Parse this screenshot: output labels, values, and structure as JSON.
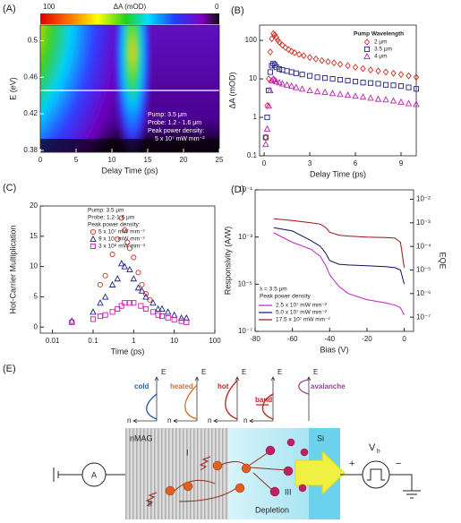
{
  "panel_labels": [
    "(A)",
    "(B)",
    "(C)",
    "(D)",
    "(E)"
  ],
  "chart_data": [
    {
      "type": "heatmap",
      "xlabel": "Delay Time (ps)",
      "ylabel": "E (eV)",
      "xlim": [
        0,
        25
      ],
      "ylim": [
        0.378,
        0.517
      ],
      "xticks": [
        0,
        5,
        10,
        15,
        20,
        25
      ],
      "yticks": [
        0.38,
        0.42,
        0.46,
        0.5
      ],
      "colorbar": {
        "label": "ΔA (mOD)",
        "max": 100,
        "min": 0
      },
      "annotations": [
        "Pump: 3.5 μm",
        "Probe: 1.2 - 1.6 μm",
        "Peak power density:",
        "5 x 10⁷ mW mm⁻²"
      ]
    },
    {
      "type": "scatter",
      "xlabel": "Delay Time (ps)",
      "ylabel": "ΔA (mOD)",
      "xlim": [
        -0.3,
        10
      ],
      "ylim": [
        0.1,
        250
      ],
      "ylog": true,
      "xticks": [
        0,
        3,
        6,
        9
      ],
      "yticks": [
        0.1,
        1,
        10,
        100
      ],
      "legend_title": "Pump Wavelength",
      "series": [
        {
          "name": "2 μm",
          "color": "#d03020",
          "marker": "diamond",
          "x": [
            0.1,
            0.2,
            0.3,
            0.4,
            0.5,
            0.6,
            0.7,
            0.8,
            0.9,
            1.0,
            1.2,
            1.4,
            1.6,
            1.8,
            2.0,
            2.3,
            2.6,
            3.0,
            3.4,
            3.8,
            4.2,
            4.6,
            5.0,
            5.5,
            6.0,
            6.5,
            7.0,
            7.5,
            8.0,
            8.5,
            9.0,
            9.5,
            10
          ],
          "values": [
            0.3,
            2,
            10,
            50,
            110,
            150,
            140,
            120,
            100,
            90,
            75,
            65,
            58,
            52,
            48,
            43,
            40,
            36,
            33,
            30,
            28,
            26,
            24,
            22,
            20,
            18.5,
            17,
            16,
            15,
            14,
            13,
            12,
            11
          ]
        },
        {
          "name": "3.5 μm",
          "color": "#20208a",
          "marker": "square",
          "x": [
            0.1,
            0.2,
            0.3,
            0.4,
            0.5,
            0.6,
            0.7,
            0.8,
            1.0,
            1.2,
            1.5,
            1.8,
            2.1,
            2.5,
            3.0,
            3.5,
            4.0,
            4.5,
            5.0,
            5.5,
            6.0,
            6.5,
            7.0,
            7.5,
            8.0,
            8.5,
            9.0,
            9.5,
            10
          ],
          "values": [
            0.3,
            1,
            5,
            15,
            22,
            25,
            23,
            20,
            18,
            17,
            16,
            15,
            14,
            13,
            12,
            11,
            10.5,
            10,
            9.5,
            9,
            8.5,
            8,
            7.8,
            7.5,
            7,
            6.8,
            6.5,
            6,
            5.5
          ]
        },
        {
          "name": "4 μm",
          "color": "#c020b0",
          "marker": "triangle",
          "x": [
            0.1,
            0.2,
            0.3,
            0.4,
            0.5,
            0.6,
            0.7,
            0.8,
            1.0,
            1.2,
            1.5,
            1.8,
            2.1,
            2.5,
            3.0,
            3.5,
            4.0,
            4.5,
            5.0,
            5.5,
            6.0,
            6.5,
            7.0,
            7.5,
            8.0,
            8.5,
            9.0,
            9.5,
            10
          ],
          "values": [
            0.2,
            0.5,
            2,
            5,
            9,
            10,
            9.5,
            8.5,
            8,
            7.5,
            7,
            6.5,
            6,
            5.5,
            5,
            4.7,
            4.5,
            4.2,
            4,
            3.8,
            3.6,
            3.4,
            3.2,
            3,
            2.9,
            2.7,
            2.5,
            2.3,
            2.2
          ]
        }
      ]
    },
    {
      "type": "scatter",
      "xlabel": "Time (ps)",
      "ylabel": "Hot-Carrier Multiplication",
      "xlim": [
        0.005,
        100
      ],
      "xlog": true,
      "ylim": [
        -1,
        20
      ],
      "xticks": [
        0.01,
        0.1,
        1,
        10,
        100
      ],
      "yticks": [
        0,
        5,
        10,
        15,
        20
      ],
      "annotations": [
        "Pump:  3.5 μm",
        "Probe:  1.2-1.6 μm",
        "Peak power density:"
      ],
      "series": [
        {
          "name": "5 x 10⁷ mW mm⁻²",
          "color": "#d03020",
          "marker": "circle",
          "x": [
            0.15,
            0.2,
            0.3,
            0.4,
            0.5,
            0.6,
            0.7,
            0.8,
            1.0,
            1.3,
            1.6,
            2,
            2.5
          ],
          "values": [
            7,
            8.5,
            12,
            14.5,
            18,
            16,
            14,
            13,
            11.5,
            9,
            7,
            5.5,
            4.5
          ]
        },
        {
          "name": "9 x 10⁷ mW mm⁻²",
          "color": "#20208a",
          "marker": "triangle",
          "x": [
            0.03,
            0.1,
            0.15,
            0.2,
            0.3,
            0.4,
            0.5,
            0.6,
            0.8,
            1.0,
            1.3,
            1.6,
            2,
            3,
            4,
            5,
            7,
            10,
            15,
            20
          ],
          "values": [
            1,
            2.5,
            4,
            5,
            7,
            8,
            10.5,
            10,
            9.5,
            8,
            6.5,
            6,
            5,
            4,
            3,
            3,
            2.5,
            2,
            1.5,
            1.5
          ]
        },
        {
          "name": "3 x 10⁸ mW mm⁻²",
          "color": "#c020b0",
          "marker": "square",
          "x": [
            0.03,
            0.1,
            0.15,
            0.2,
            0.3,
            0.4,
            0.5,
            0.6,
            0.8,
            1,
            1.5,
            2,
            3,
            4,
            5,
            7,
            10,
            15,
            20
          ],
          "values": [
            0.8,
            1.3,
            1.8,
            2,
            2.5,
            3,
            3.5,
            4,
            4,
            4,
            3.5,
            3,
            2.5,
            2,
            1.8,
            1.5,
            1.2,
            1,
            0.8
          ]
        }
      ]
    },
    {
      "type": "line",
      "xlabel": "Bias (V)",
      "ylabel": "Responsivity (A/W)",
      "y2label": "EQE",
      "xlim": [
        -80,
        5
      ],
      "ylim": [
        1e-07,
        0.1
      ],
      "ylog": true,
      "y2lim": [
        2.5e-08,
        0.025
      ],
      "xticks": [
        -80,
        -60,
        -40,
        -20,
        0
      ],
      "yticks": [
        {
          "value": 0.1,
          "label": "10⁻¹"
        },
        {
          "value": 0.001,
          "label": "10⁻³"
        },
        {
          "value": 1e-05,
          "label": "10⁻⁵"
        },
        {
          "value": 1e-07,
          "label": "10⁻⁷"
        }
      ],
      "y2ticks": [
        {
          "value": 0.01,
          "label": "10⁻²"
        },
        {
          "value": 0.001,
          "label": "10⁻³"
        },
        {
          "value": 0.0001,
          "label": "10⁻⁴"
        },
        {
          "value": 1e-05,
          "label": "10⁻⁵"
        },
        {
          "value": 1e-06,
          "label": "10⁻⁶"
        },
        {
          "value": 1e-07,
          "label": "10⁻⁷"
        }
      ],
      "annotations": [
        "λ = 3.5 μm",
        "Peak power density"
      ],
      "series": [
        {
          "name": "2.5 x 10⁷ mW mm⁻²",
          "color": "#c020c0",
          "x": [
            -70,
            -60,
            -50,
            -45,
            -42,
            -40,
            -35,
            -30,
            -20,
            -10,
            -5,
            -2,
            0
          ],
          "values": [
            0.0015,
            0.0006,
            0.0003,
            0.00015,
            6e-05,
            2.5e-05,
            8e-06,
            4e-06,
            2.2e-06,
            1.6e-06,
            1.3e-06,
            1e-06,
            5e-07
          ]
        },
        {
          "name": "5.0 x 10⁷ mW mm⁻²",
          "color": "#101060",
          "x": [
            -70,
            -60,
            -50,
            -45,
            -42,
            -40,
            -35,
            -30,
            -20,
            -10,
            -5,
            -2,
            0
          ],
          "values": [
            0.0025,
            0.0018,
            0.0007,
            0.0004,
            0.0002,
            0.0001,
            7e-05,
            6.5e-05,
            6e-05,
            5.5e-05,
            5e-05,
            4e-05,
            1e-05
          ]
        },
        {
          "name": "17.5 x 10⁷ mW mm⁻²",
          "color": "#a01010",
          "x": [
            -70,
            -60,
            -50,
            -45,
            -42,
            -40,
            -35,
            -30,
            -20,
            -10,
            -5,
            -2,
            0
          ],
          "values": [
            0.006,
            0.005,
            0.004,
            0.0035,
            0.0025,
            0.0016,
            0.0012,
            0.0011,
            0.001,
            0.00095,
            0.0009,
            0.0006,
            5e-05
          ]
        }
      ]
    }
  ],
  "diagram": {
    "carrier_states": [
      "cold",
      "heated",
      "hot",
      "avalanche"
    ],
    "band_label": "band",
    "axis_E": "E",
    "axis_n": "n",
    "regions": {
      "metal": "nMAG",
      "depletion": "Depletion",
      "semiconductor": "Si"
    },
    "processes": [
      "I",
      "II",
      "III"
    ],
    "ammeter": "A",
    "bias": "V",
    "bias_sub": "b",
    "plus": "+",
    "minus": "−"
  }
}
